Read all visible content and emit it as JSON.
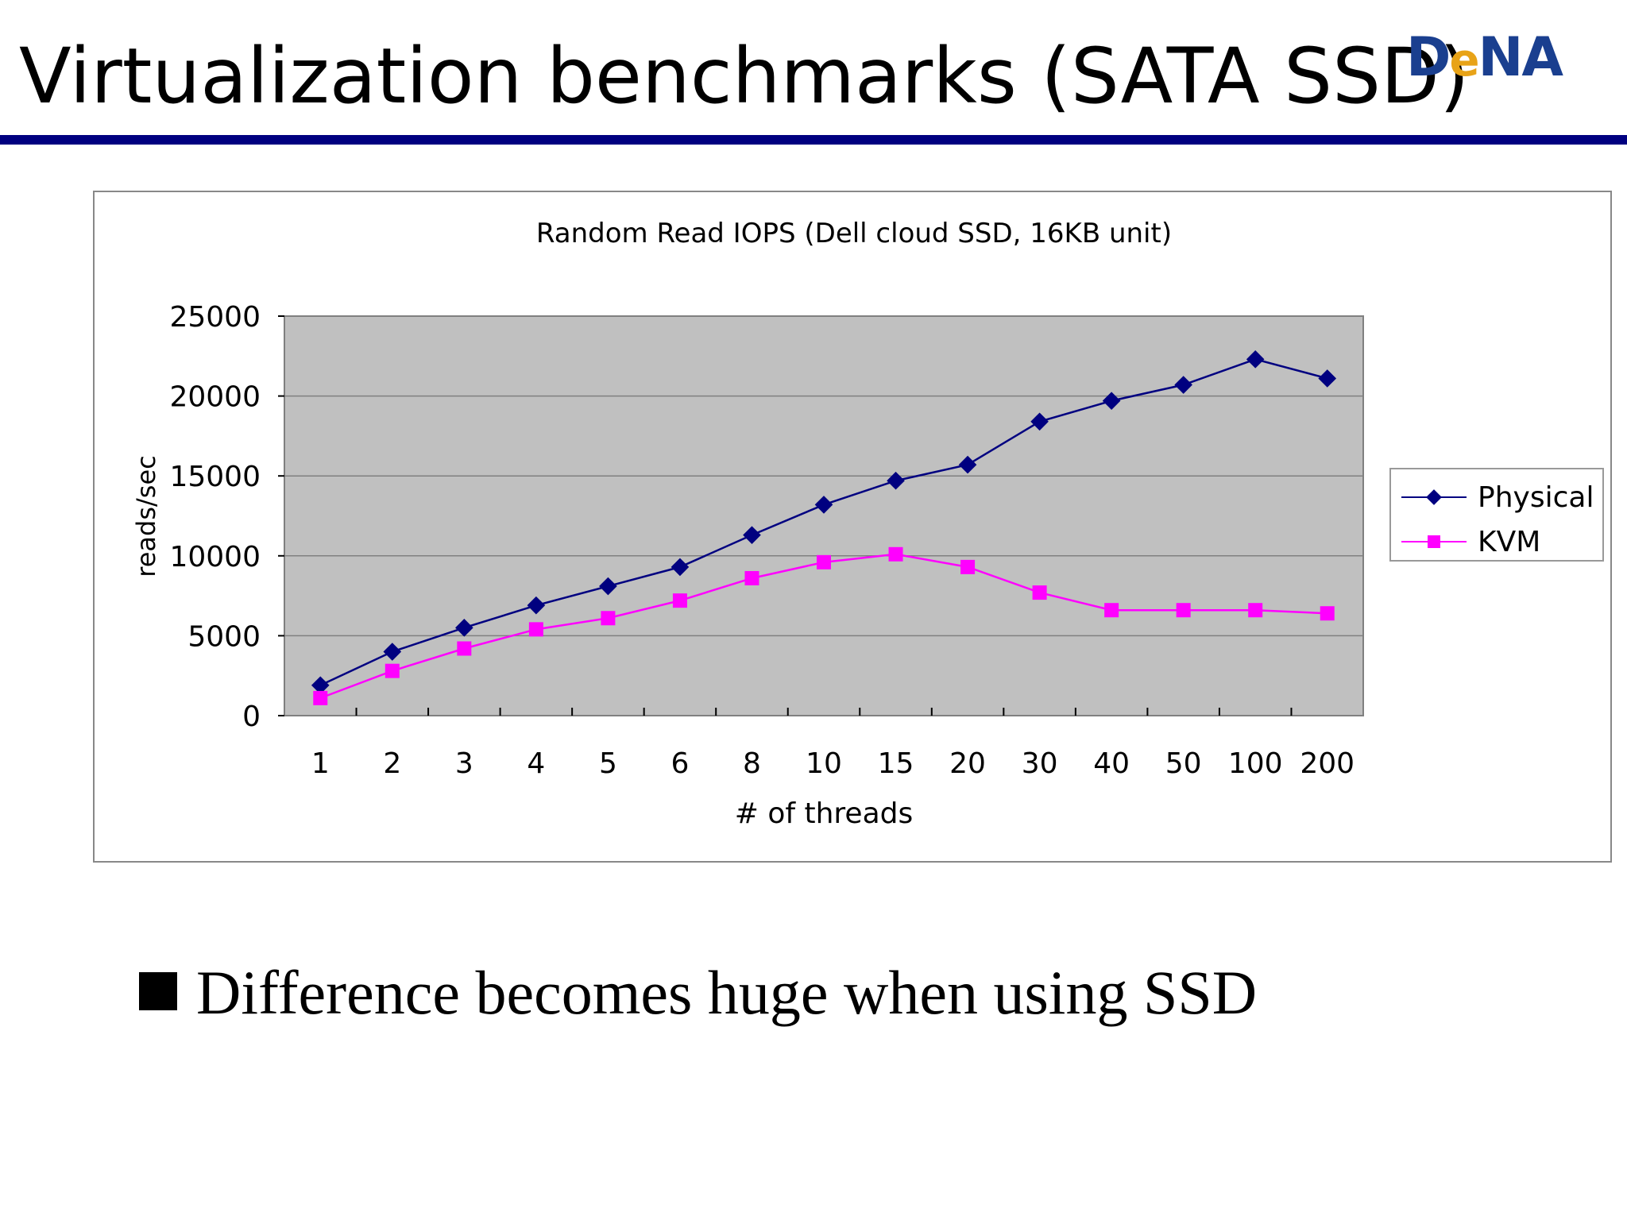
{
  "slide": {
    "title": "Virtualization benchmarks (SATA SSD)",
    "logo_text": "DeNA",
    "bullet": "Difference becomes huge when using SSD"
  },
  "colors": {
    "title_rule": "#000080",
    "plot_background": "#c0c0c0",
    "physical": "#000080",
    "kvm": "#ff00ff"
  },
  "chart_data": {
    "type": "line",
    "title": "Random Read IOPS (Dell cloud SSD, 16KB unit)",
    "xlabel": "# of threads",
    "ylabel": "reads/sec",
    "categories": [
      "1",
      "2",
      "3",
      "4",
      "5",
      "6",
      "8",
      "10",
      "15",
      "20",
      "30",
      "40",
      "50",
      "100",
      "200"
    ],
    "ylim": [
      0,
      25000
    ],
    "yticks": [
      "0",
      "5000",
      "10000",
      "15000",
      "20000",
      "25000"
    ],
    "grid": true,
    "legend_position": "right",
    "series": [
      {
        "name": "Physical",
        "marker": "diamond",
        "color": "#000080",
        "values": [
          1900,
          4000,
          5500,
          6900,
          8100,
          9300,
          11300,
          13200,
          14700,
          15700,
          18400,
          19700,
          20700,
          22300,
          21100
        ]
      },
      {
        "name": "KVM",
        "marker": "square",
        "color": "#ff00ff",
        "values": [
          1100,
          2800,
          4200,
          5400,
          6100,
          7200,
          8600,
          9600,
          10100,
          9300,
          7700,
          6600,
          6600,
          6600,
          6400
        ]
      }
    ]
  }
}
